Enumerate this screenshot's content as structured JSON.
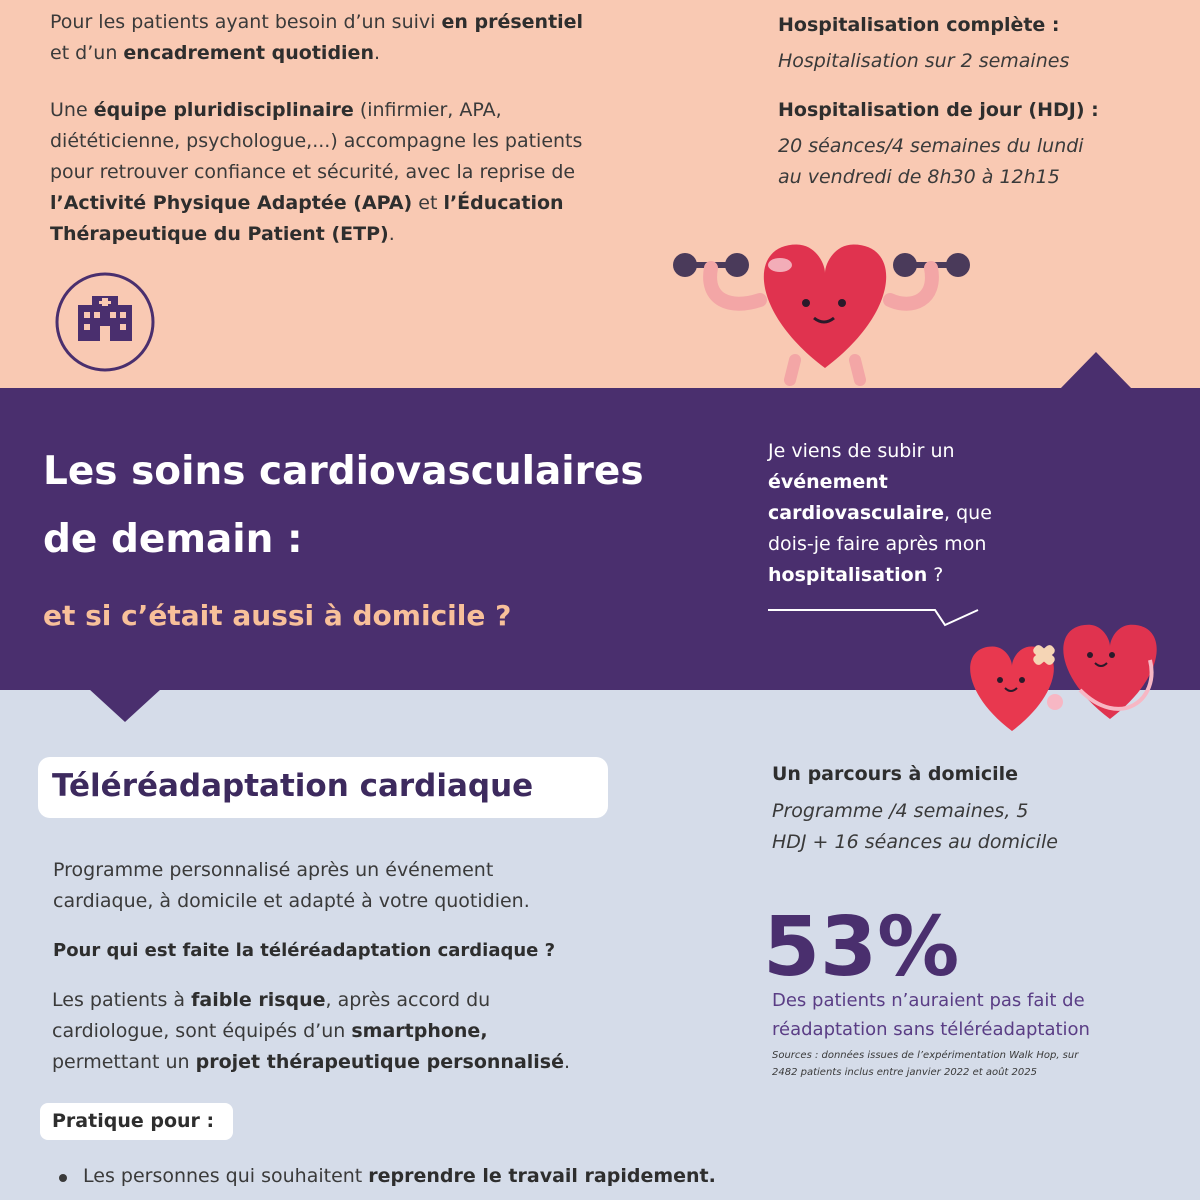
{
  "hospital": {
    "intro": [
      [
        {
          "text": "Pour les patients ayant besoin d’un suivi ",
          "bold": false
        },
        {
          "text": "en présentiel",
          "bold": true
        }
      ],
      [
        {
          "text": "et d’un ",
          "bold": false
        },
        {
          "text": "encadrement quotidien",
          "bold": true
        },
        {
          "text": ".",
          "bold": false
        }
      ]
    ],
    "team": [
      [
        {
          "text": "Une ",
          "bold": false
        },
        {
          "text": "équipe pluridisciplinaire",
          "bold": true
        },
        {
          "text": " (infirmier, APA,",
          "bold": false
        }
      ],
      [
        {
          "text": "diététicienne, psychologue,...) accompagne les patients",
          "bold": false
        }
      ],
      [
        {
          "text": "pour retrouver confiance et sécurité, avec la reprise de",
          "bold": false
        }
      ],
      [
        {
          "text": "l’Activité Physique Adaptée (APA)",
          "bold": true
        },
        {
          "text": " et ",
          "bold": false
        },
        {
          "text": "l’Éducation",
          "bold": true
        }
      ],
      [
        {
          "text": "Thérapeutique du Patient (ETP)",
          "bold": true
        },
        {
          "text": ".",
          "bold": false
        }
      ]
    ],
    "full_title": "Hospitalisation complète :",
    "full_text": "Hospitalisation sur 2 semaines",
    "day_title": "Hospitalisation de jour (HDJ) :",
    "day_text": [
      "20 séances/4 semaines du lundi",
      "au vendredi de 8h30 à 12h15"
    ]
  },
  "banner": {
    "title": [
      "Les soins cardiovasculaires",
      "de demain :"
    ],
    "subtitle": "et si c’était aussi à domicile ?",
    "question": [
      [
        {
          "text": "Je viens de subir un",
          "bold": false
        }
      ],
      [
        {
          "text": "événement",
          "bold": true
        }
      ],
      [
        {
          "text": "cardiovasculaire",
          "bold": true
        },
        {
          "text": ", que",
          "bold": false
        }
      ],
      [
        {
          "text": "dois-je faire après mon",
          "bold": false
        }
      ],
      [
        {
          "text": "hospitalisation",
          "bold": true
        },
        {
          "text": " ?",
          "bold": false
        }
      ]
    ]
  },
  "tele": {
    "title": "Téléréadaptation cardiaque",
    "intro": [
      "Programme personnalisé après un événement",
      "cardiaque, à domicile et adapté à votre quotidien."
    ],
    "who_title": "Pour qui est faite la téléréadaptation cardiaque ?",
    "who": [
      [
        {
          "text": "Les patients à ",
          "bold": false
        },
        {
          "text": "faible risque",
          "bold": true
        },
        {
          "text": ", après accord du",
          "bold": false
        }
      ],
      [
        {
          "text": "cardiologue, sont équipés d’un ",
          "bold": false
        },
        {
          "text": "smartphone,",
          "bold": true
        }
      ],
      [
        {
          "text": "permettant un ",
          "bold": false
        },
        {
          "text": "projet thérapeutique personnalisé",
          "bold": true
        },
        {
          "text": ".",
          "bold": false
        }
      ]
    ],
    "practical_title": "Pratique pour :",
    "bullets": [
      [
        {
          "text": "Les personnes qui souhaitent ",
          "bold": false
        },
        {
          "text": "reprendre le travail rapidement.",
          "bold": true
        }
      ]
    ],
    "route_title": "Un parcours à domicile",
    "route_text": [
      "Programme /4 semaines, 5",
      "HDJ + 16 séances au domicile"
    ],
    "stat": "53%",
    "stat_text": [
      "Des patients n’auraient pas fait de",
      "réadaptation sans téléréadaptation"
    ],
    "sources": [
      "Sources : données issues de l’expérimentation Walk Hop, sur",
      "2482 patients inclus entre janvier 2022 et août 2025"
    ]
  }
}
